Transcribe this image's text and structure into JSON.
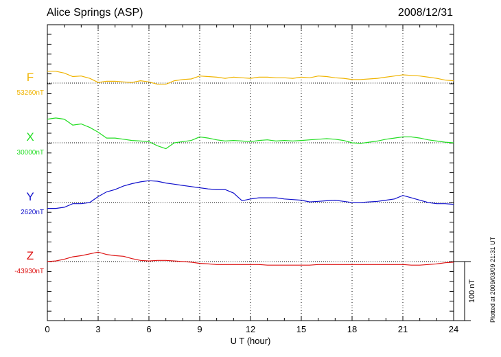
{
  "header": {
    "station": "Alice Springs (ASP)",
    "date": "2008/12/31",
    "plotted_note": "Plotted at 2009/03/09 21:31 UT"
  },
  "chart_data": {
    "type": "line",
    "xlabel": "U T (hour)",
    "xlim": [
      0,
      24
    ],
    "xticks": [
      "0",
      "3",
      "6",
      "9",
      "12",
      "15",
      "18",
      "21",
      "24"
    ],
    "scale_bar": "100 nT",
    "series": [
      {
        "name": "F",
        "baseline_label": "53260nT",
        "color": "#f0b400",
        "baseline": 53260,
        "x": [
          0,
          0.5,
          1,
          1.5,
          2,
          2.5,
          3,
          3.5,
          4,
          4.5,
          5,
          5.5,
          6,
          6.5,
          7,
          7.5,
          8,
          8.5,
          9,
          9.5,
          10,
          10.5,
          11,
          11.5,
          12,
          12.5,
          13,
          13.5,
          14,
          14.5,
          15,
          15.5,
          16,
          16.5,
          17,
          17.5,
          18,
          18.5,
          19,
          19.5,
          20,
          20.5,
          21,
          21.5,
          22,
          22.5,
          23,
          23.5,
          24
        ],
        "values": [
          53280,
          53280,
          53277,
          53271,
          53272,
          53268,
          53261,
          53263,
          53263,
          53262,
          53261,
          53264,
          53262,
          53258,
          53258,
          53264,
          53266,
          53267,
          53272,
          53271,
          53270,
          53268,
          53270,
          53269,
          53268,
          53270,
          53270,
          53269,
          53269,
          53268,
          53270,
          53269,
          53272,
          53271,
          53269,
          53268,
          53266,
          53266,
          53267,
          53268,
          53270,
          53272,
          53274,
          53273,
          53272,
          53270,
          53268,
          53265,
          53264
        ]
      },
      {
        "name": "X",
        "baseline_label": "30000nT",
        "color": "#22dd22",
        "baseline": 30000,
        "x": [
          0,
          0.5,
          1,
          1.5,
          2,
          2.5,
          3,
          3.5,
          4,
          4.5,
          5,
          5.5,
          6,
          6.5,
          7,
          7.5,
          8,
          8.5,
          9,
          9.5,
          10,
          10.5,
          11,
          11.5,
          12,
          12.5,
          13,
          13.5,
          14,
          14.5,
          15,
          15.5,
          16,
          16.5,
          17,
          17.5,
          18,
          18.5,
          19,
          19.5,
          20,
          20.5,
          21,
          21.5,
          22,
          22.5,
          23,
          23.5,
          24
        ],
        "values": [
          30040,
          30042,
          30040,
          30030,
          30032,
          30026,
          30018,
          30008,
          30008,
          30006,
          30004,
          30003,
          30002,
          29995,
          29990,
          30000,
          30002,
          30004,
          30010,
          30008,
          30005,
          30003,
          30004,
          30003,
          30002,
          30004,
          30005,
          30003,
          30004,
          30003,
          30004,
          30005,
          30006,
          30007,
          30006,
          30004,
          30000,
          29999,
          30001,
          30003,
          30006,
          30008,
          30010,
          30010,
          30008,
          30005,
          30003,
          30001,
          30000
        ]
      },
      {
        "name": "Y",
        "baseline_label": "2620nT",
        "color": "#1010cc",
        "baseline": 2620,
        "x": [
          0,
          0.5,
          1,
          1.5,
          2,
          2.5,
          3,
          3.5,
          4,
          4.5,
          5,
          5.5,
          6,
          6.5,
          7,
          7.5,
          8,
          8.5,
          9,
          9.5,
          10,
          10.5,
          11,
          11.5,
          12,
          12.5,
          13,
          13.5,
          14,
          14.5,
          15,
          15.5,
          16,
          16.5,
          17,
          17.5,
          18,
          18.5,
          19,
          19.5,
          20,
          20.5,
          21,
          21.5,
          22,
          22.5,
          23,
          23.5,
          24
        ],
        "values": [
          2610,
          2610,
          2612,
          2618,
          2618,
          2620,
          2630,
          2638,
          2642,
          2648,
          2652,
          2655,
          2657,
          2656,
          2653,
          2651,
          2649,
          2647,
          2645,
          2643,
          2642,
          2642,
          2636,
          2623,
          2626,
          2628,
          2628,
          2628,
          2626,
          2625,
          2624,
          2621,
          2622,
          2623,
          2624,
          2622,
          2620,
          2620,
          2621,
          2622,
          2624,
          2626,
          2632,
          2628,
          2624,
          2620,
          2618,
          2618,
          2617
        ]
      },
      {
        "name": "Z",
        "baseline_label": "-43930nT",
        "color": "#dd1111",
        "baseline": -43930,
        "x": [
          0,
          0.5,
          1,
          1.5,
          2,
          2.5,
          3,
          3.5,
          4,
          4.5,
          5,
          5.5,
          6,
          6.5,
          7,
          7.5,
          8,
          8.5,
          9,
          9.5,
          10,
          10.5,
          11,
          11.5,
          12,
          12.5,
          13,
          13.5,
          14,
          14.5,
          15,
          15.5,
          16,
          16.5,
          17,
          17.5,
          18,
          18.5,
          19,
          19.5,
          20,
          20.5,
          21,
          21.5,
          22,
          22.5,
          23,
          23.5,
          24
        ],
        "values": [
          -43930,
          -43929,
          -43926,
          -43922,
          -43920,
          -43917,
          -43914,
          -43918,
          -43920,
          -43921,
          -43925,
          -43928,
          -43929,
          -43928,
          -43928,
          -43929,
          -43930,
          -43931,
          -43933,
          -43934,
          -43935,
          -43935,
          -43935,
          -43935,
          -43935,
          -43935,
          -43936,
          -43936,
          -43936,
          -43936,
          -43936,
          -43936,
          -43935,
          -43935,
          -43935,
          -43935,
          -43935,
          -43935,
          -43935,
          -43935,
          -43935,
          -43935,
          -43935,
          -43936,
          -43936,
          -43935,
          -43934,
          -43932,
          -43931
        ]
      }
    ]
  }
}
